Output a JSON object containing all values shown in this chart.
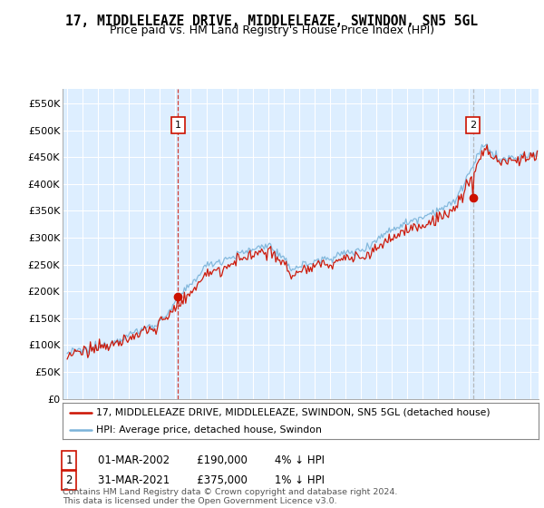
{
  "title": "17, MIDDLELEAZE DRIVE, MIDDLELEAZE, SWINDON, SN5 5GL",
  "subtitle": "Price paid vs. HM Land Registry's House Price Index (HPI)",
  "ylim": [
    0,
    577000
  ],
  "yticks": [
    0,
    50000,
    100000,
    150000,
    200000,
    250000,
    300000,
    350000,
    400000,
    450000,
    500000,
    550000
  ],
  "ytick_labels": [
    "£0",
    "£50K",
    "£100K",
    "£150K",
    "£200K",
    "£250K",
    "£300K",
    "£350K",
    "£400K",
    "£450K",
    "£500K",
    "£550K"
  ],
  "hpi_color": "#7ab3d9",
  "price_color": "#cc1100",
  "vline1_color": "#cc1100",
  "vline2_color": "#aaaaaa",
  "background_color": "#ffffff",
  "plot_bg_color": "#ddeeff",
  "grid_color": "#ffffff",
  "sale1_year": 2002.17,
  "sale2_year": 2021.25,
  "sale1_value": 190000,
  "sale2_value": 375000,
  "legend_label1": "17, MIDDLELEAZE DRIVE, MIDDLELEAZE, SWINDON, SN5 5GL (detached house)",
  "legend_label2": "HPI: Average price, detached house, Swindon",
  "ann1_date": "01-MAR-2002",
  "ann1_price": "£190,000",
  "ann1_pct": "4% ↓ HPI",
  "ann2_date": "31-MAR-2021",
  "ann2_price": "£375,000",
  "ann2_pct": "1% ↓ HPI",
  "footer": "Contains HM Land Registry data © Crown copyright and database right 2024.\nThis data is licensed under the Open Government Licence v3.0.",
  "title_fontsize": 10.5,
  "subtitle_fontsize": 9
}
